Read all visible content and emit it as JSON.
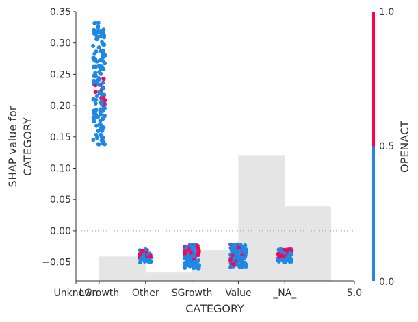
{
  "chart_data": {
    "type": "scatter",
    "xlabel": "CATEGORY",
    "ylabel_lines": [
      "SHAP value for",
      "CATEGORY"
    ],
    "ylim": [
      -0.08,
      0.35
    ],
    "yticks": [
      "0.35",
      "0.30",
      "0.25",
      "0.20",
      "0.15",
      "0.10",
      "0.05",
      "0.00",
      "−0.05"
    ],
    "ytick_values": [
      0.35,
      0.3,
      0.25,
      0.2,
      0.15,
      0.1,
      0.05,
      0.0,
      -0.05
    ],
    "xlim": [
      -0.5,
      5.5
    ],
    "xtick_labels": [
      "Unknown",
      "LGrowth",
      "Other",
      "SGrowth",
      "Value",
      "_NA_",
      "5.0"
    ],
    "xtick_positions": [
      -0.5,
      0,
      1,
      2,
      3,
      4,
      5.5
    ],
    "histogram_bins": [
      {
        "x0": 0.0,
        "x1": 1.0,
        "top": -0.041
      },
      {
        "x0": 1.0,
        "x1": 2.0,
        "top": -0.066
      },
      {
        "x0": 2.0,
        "x1": 3.0,
        "top": -0.031
      },
      {
        "x0": 3.0,
        "x1": 4.0,
        "top": 0.121
      },
      {
        "x0": 4.0,
        "x1": 5.0,
        "top": 0.039
      }
    ],
    "clusters": [
      {
        "category": "LGrowth",
        "x": 0,
        "y_min": 0.138,
        "y_max": 0.333,
        "n_blue": 150,
        "n_red": 12,
        "red_range": [
          0.186,
          0.25
        ],
        "spread": 0.13
      },
      {
        "category": "Other",
        "x": 1,
        "y_min": -0.052,
        "y_max": -0.028,
        "n_blue": 40,
        "n_red": 12,
        "red_range": [
          -0.045,
          -0.028
        ],
        "spread": 0.13
      },
      {
        "category": "SGrowth",
        "x": 2,
        "y_min": -0.06,
        "y_max": -0.022,
        "n_blue": 80,
        "n_red": 25,
        "red_range": [
          -0.05,
          -0.022
        ],
        "spread": 0.16
      },
      {
        "category": "Value",
        "x": 3,
        "y_min": -0.058,
        "y_max": -0.021,
        "n_blue": 130,
        "n_red": 35,
        "red_range": [
          -0.055,
          -0.022
        ],
        "spread": 0.17
      },
      {
        "category": "_NA_",
        "x": 4,
        "y_min": -0.051,
        "y_max": -0.029,
        "n_blue": 70,
        "n_red": 25,
        "red_range": [
          -0.045,
          -0.029
        ],
        "spread": 0.15
      }
    ],
    "colorbar": {
      "label": "OPENACT",
      "ticks": [
        "1.0",
        "0.5",
        "0.0"
      ],
      "low_color": "#1e88e5",
      "high_color": "#ff0052"
    },
    "colors": {
      "blue": "#1e88e5",
      "red": "#ff0052",
      "histogram": "#e5e5e5",
      "zero_line": "#999999",
      "axis": "#333333"
    }
  }
}
